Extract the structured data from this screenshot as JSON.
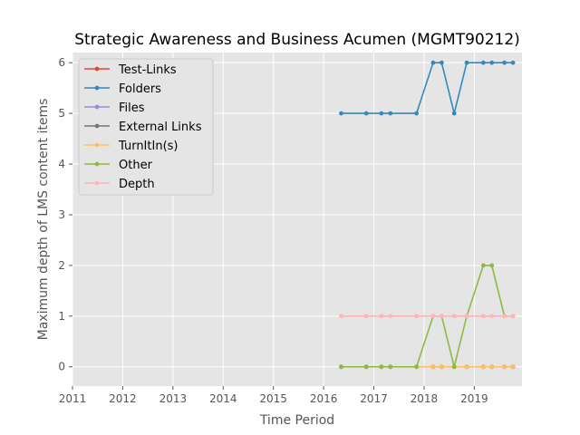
{
  "chart_data": {
    "type": "line",
    "title": "Strategic Awareness and Business Acumen (MGMT90212)",
    "xlabel": "Time Period",
    "ylabel": "Maximum depth of LMS content items",
    "xlim": [
      2011.0,
      2019.95
    ],
    "ylim": [
      -0.38,
      6.2
    ],
    "xticks": [
      2011,
      2012,
      2013,
      2014,
      2015,
      2016,
      2017,
      2018,
      2019
    ],
    "yticks": [
      0,
      1,
      2,
      3,
      4,
      5,
      6
    ],
    "grid": true,
    "legend_position": "upper-left",
    "x": [
      2016.35,
      2016.85,
      2017.15,
      2017.33,
      2017.85,
      2018.18,
      2018.35,
      2018.6,
      2018.85,
      2019.18,
      2019.35,
      2019.6,
      2019.77
    ],
    "series": [
      {
        "name": "Test-Links",
        "color": "#E24A33",
        "values": [
          0,
          0,
          0,
          0,
          0,
          0,
          0,
          0,
          0,
          0,
          0,
          0,
          0
        ]
      },
      {
        "name": "Folders",
        "color": "#348ABD",
        "values": [
          5,
          5,
          5,
          5,
          5,
          6,
          6,
          5,
          6,
          6,
          6,
          6,
          6
        ]
      },
      {
        "name": "Files",
        "color": "#988ED5",
        "values": [
          0,
          0,
          0,
          0,
          0,
          0,
          0,
          0,
          0,
          0,
          0,
          0,
          0
        ]
      },
      {
        "name": "External Links",
        "color": "#777777",
        "values": [
          0,
          0,
          0,
          0,
          0,
          0,
          0,
          0,
          0,
          0,
          0,
          0,
          0
        ]
      },
      {
        "name": "TurnItIn(s)",
        "color": "#FBC15E",
        "values": [
          0,
          0,
          0,
          0,
          0,
          0,
          0,
          0,
          0,
          0,
          0,
          0,
          0
        ]
      },
      {
        "name": "Other",
        "color": "#8EBA42",
        "values": [
          0,
          0,
          0,
          0,
          0,
          1,
          1,
          0,
          1,
          2,
          2,
          1,
          1
        ]
      },
      {
        "name": "Depth",
        "color": "#FFB5B8",
        "values": [
          1,
          1,
          1,
          1,
          1,
          1,
          1,
          1,
          1,
          1,
          1,
          1,
          1
        ]
      }
    ]
  }
}
